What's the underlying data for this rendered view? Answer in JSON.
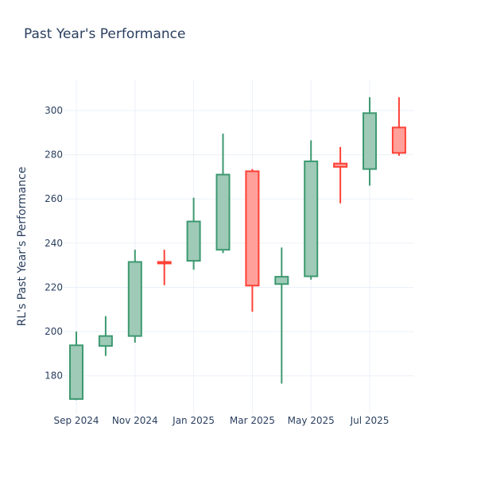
{
  "chart_data": {
    "type": "candlestick",
    "title": "Past Year's Performance",
    "xlabel": "",
    "ylabel": "RL's Past Year's Performance",
    "ylim": [
      163,
      314
    ],
    "y_ticks": [
      180,
      200,
      220,
      240,
      260,
      280,
      300
    ],
    "x_ticks": [
      "Sep 2024",
      "Nov 2024",
      "Jan 2025",
      "Mar 2025",
      "May 2025",
      "Jul 2025"
    ],
    "grid": true,
    "colors": {
      "increasing": "#3d9970",
      "decreasing": "#ff4136",
      "increasing_fill": "#9ecab7",
      "decreasing_fill": "#ffa09b"
    },
    "candles": [
      {
        "period": "Sep 2024",
        "open": 169.5,
        "high": 200.0,
        "low": 169.0,
        "close": 193.8
      },
      {
        "period": "Oct 2024",
        "open": 193.5,
        "high": 207.0,
        "low": 189.0,
        "close": 198.0
      },
      {
        "period": "Nov 2024",
        "open": 198.0,
        "high": 237.0,
        "low": 195.0,
        "close": 231.5
      },
      {
        "period": "Dec 2024",
        "open": 231.5,
        "high": 237.0,
        "low": 221.0,
        "close": 230.8
      },
      {
        "period": "Jan 2025",
        "open": 232.0,
        "high": 260.5,
        "low": 228.0,
        "close": 249.8
      },
      {
        "period": "Feb 2025",
        "open": 237.0,
        "high": 289.5,
        "low": 235.5,
        "close": 271.0
      },
      {
        "period": "Mar 2025",
        "open": 272.5,
        "high": 273.5,
        "low": 209.0,
        "close": 220.8
      },
      {
        "period": "Apr 2025",
        "open": 221.5,
        "high": 238.0,
        "low": 176.5,
        "close": 224.8
      },
      {
        "period": "May 2025",
        "open": 225.0,
        "high": 286.5,
        "low": 223.5,
        "close": 277.0
      },
      {
        "period": "Jun 2025",
        "open": 276.0,
        "high": 283.5,
        "low": 258.0,
        "close": 274.5
      },
      {
        "period": "Jul 2025",
        "open": 273.5,
        "high": 306.0,
        "low": 266.0,
        "close": 298.8
      },
      {
        "period": "Aug 2025",
        "open": 292.3,
        "high": 306.0,
        "low": 279.5,
        "close": 280.8
      }
    ]
  }
}
